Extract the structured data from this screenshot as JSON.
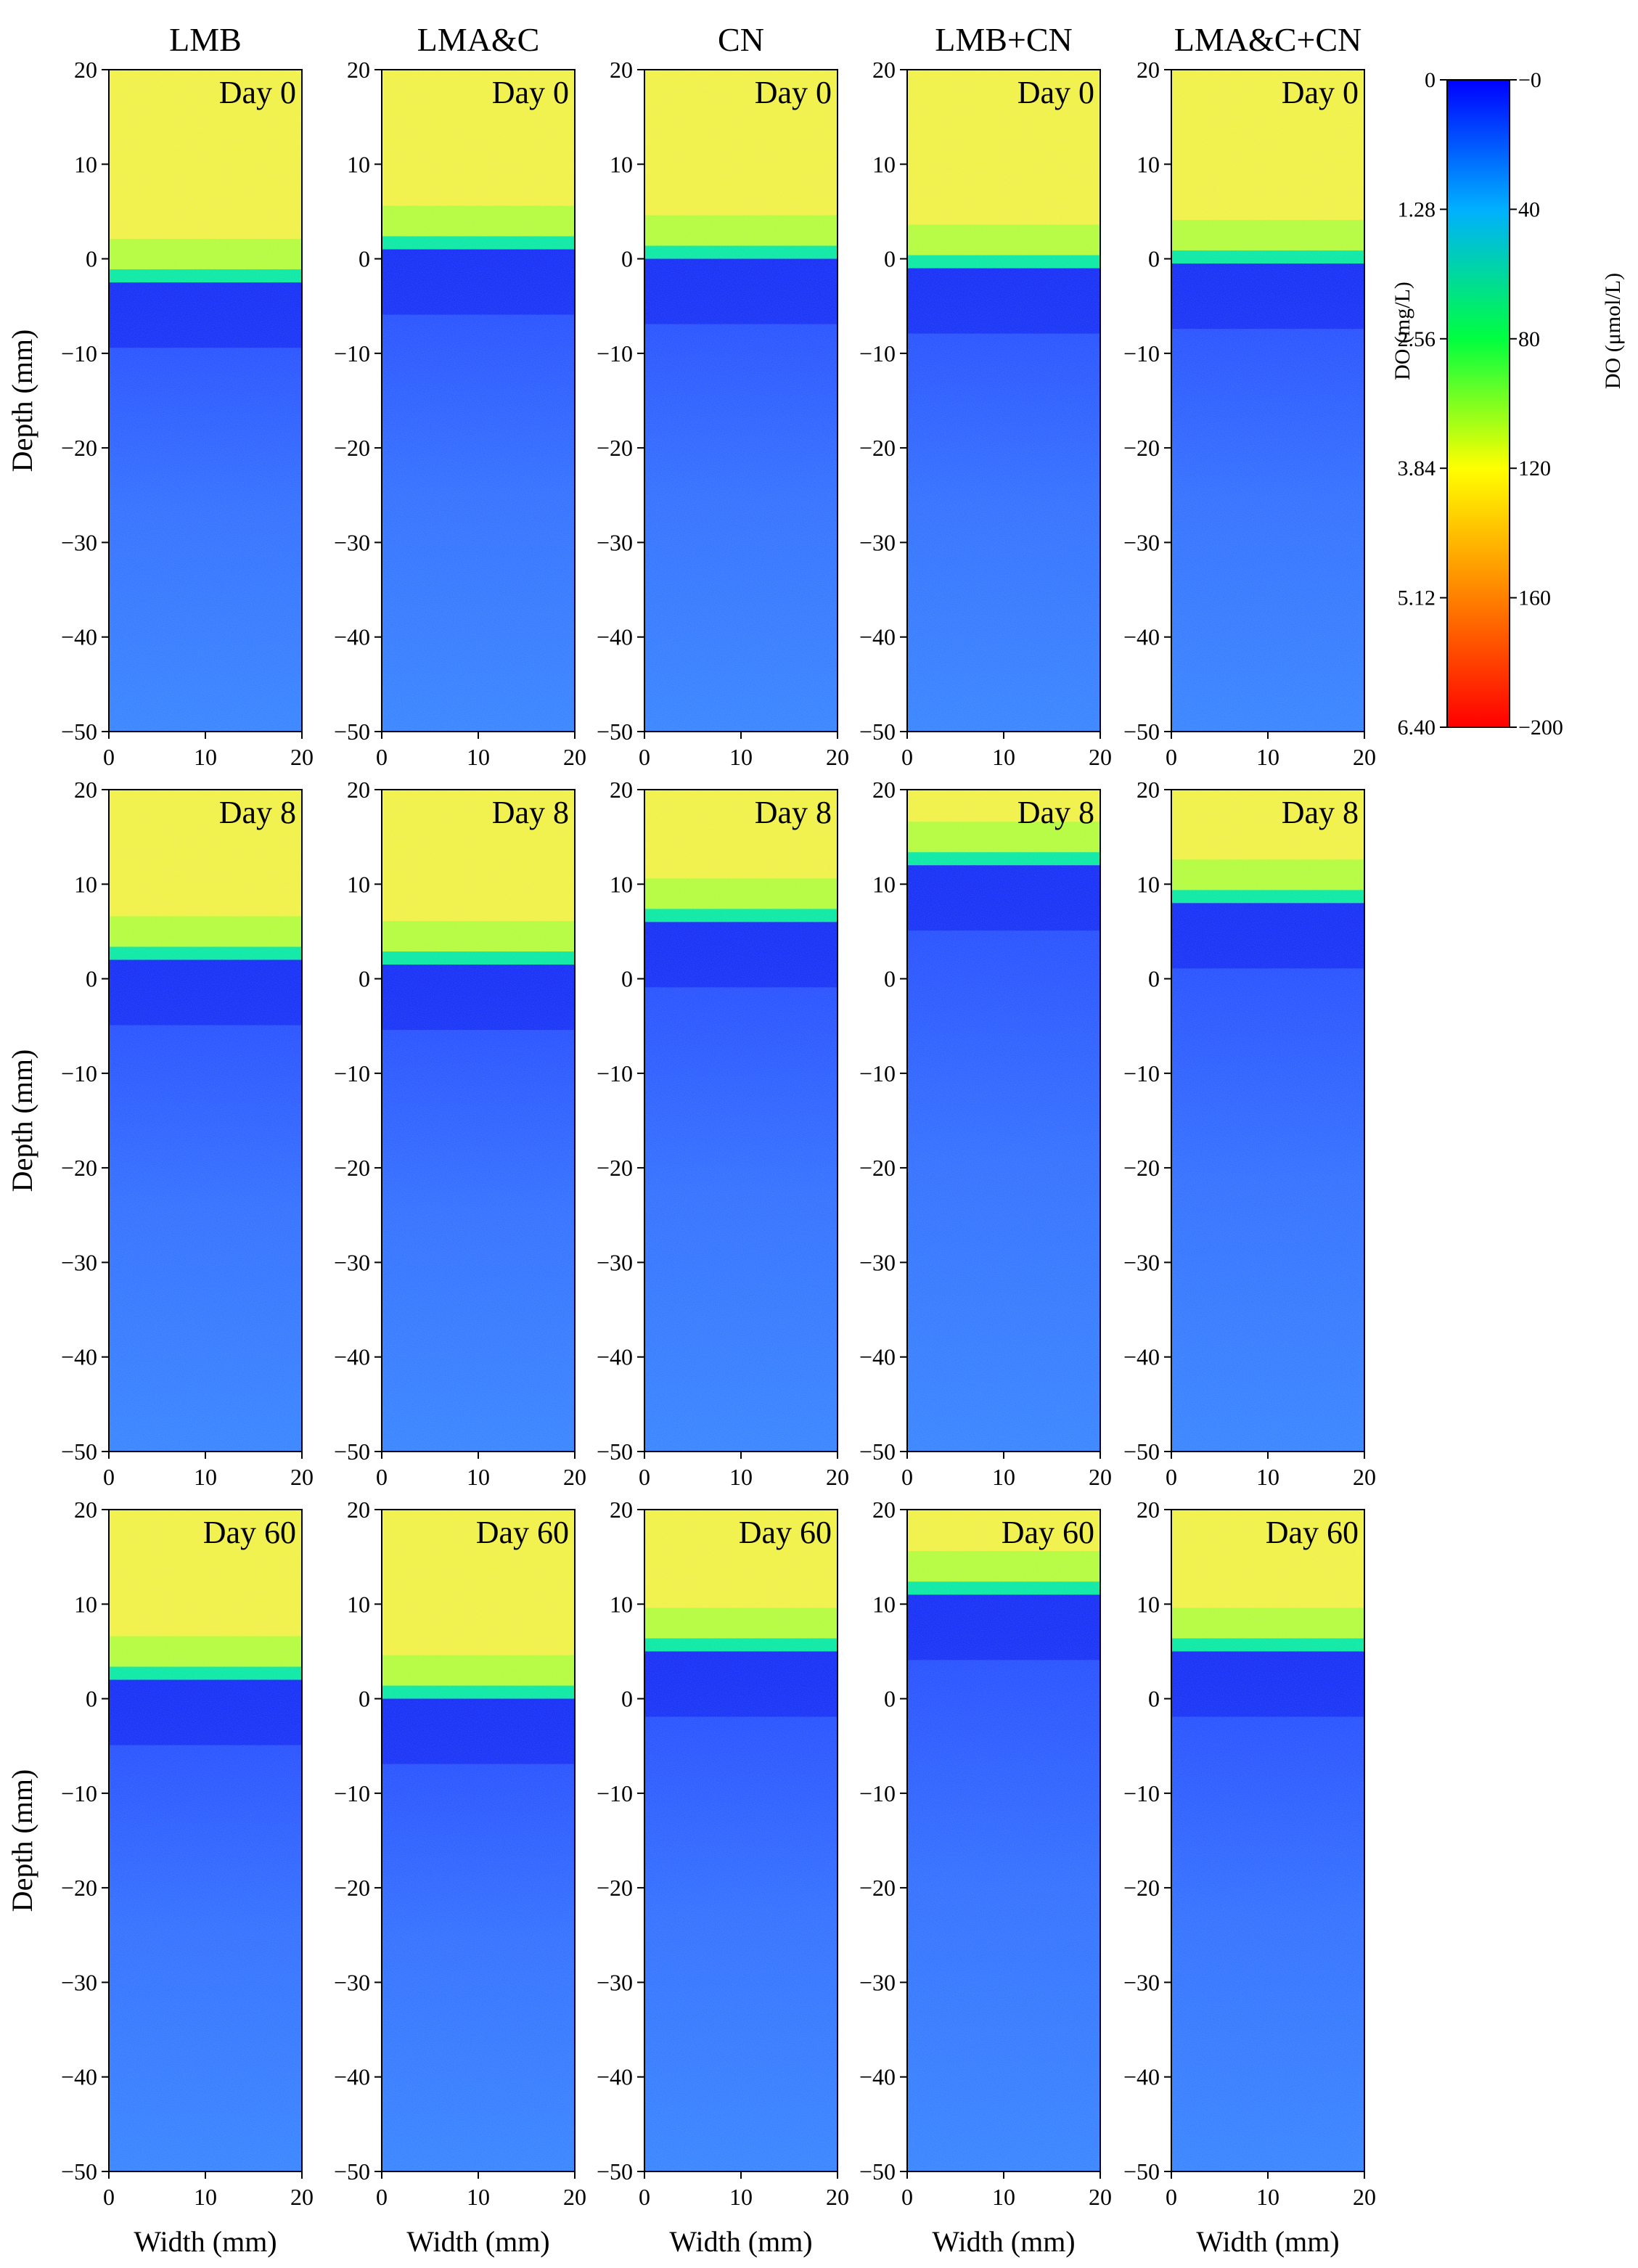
{
  "chart_data": {
    "type": "heatmap",
    "columns": [
      "LMB",
      "LMA&C",
      "CN",
      "LMB+CN",
      "LMA&C+CN"
    ],
    "rows": [
      "Day 0",
      "Day 8",
      "Day 60"
    ],
    "xlabel": "Width (mm)",
    "ylabel": "Depth (mm)",
    "xlim": [
      0,
      20
    ],
    "ylim": [
      -50,
      20
    ],
    "xticks": [
      0,
      10,
      20
    ],
    "yticks": [
      20,
      10,
      0,
      -10,
      -20,
      -30,
      -40,
      -50
    ],
    "interface_depth_mm": [
      [
        -2.5,
        1,
        0,
        -1,
        -0.5
      ],
      [
        2,
        1.5,
        6,
        12,
        8
      ],
      [
        2,
        0,
        5,
        11,
        5
      ]
    ],
    "colorbar": {
      "left_label": "DO (mg/L)",
      "right_label": "DO (μmol/L)",
      "left_ticks": [
        "0",
        "1.28",
        "2.56",
        "3.84",
        "5.12",
        "6.40"
      ],
      "right_ticks": [
        "0",
        "40",
        "80",
        "120",
        "160",
        "200"
      ],
      "colors": [
        "#0000ff",
        "#00c0ff",
        "#00ff00",
        "#ffff00",
        "#ff8000",
        "#ff0000"
      ]
    }
  }
}
